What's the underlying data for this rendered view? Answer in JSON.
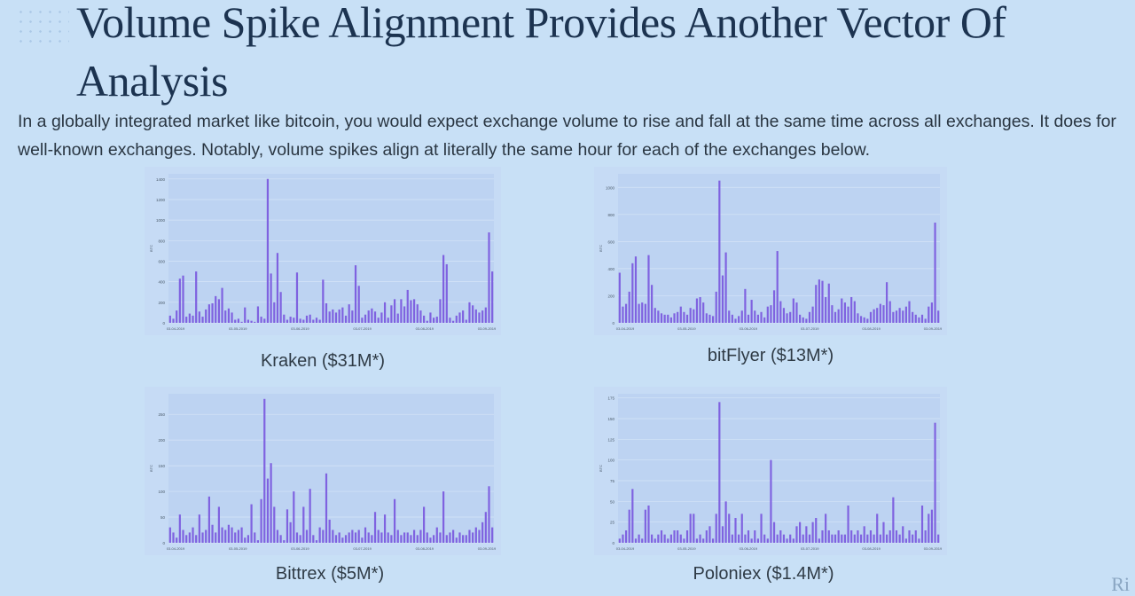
{
  "slide": {
    "title": "Volume Spike Alignment Provides Another Vector Of Analysis",
    "subtitle": "In a globally integrated market like bitcoin, you would expect exchange volume to rise and fall at the same time across all exchanges. It does for well-known exchanges. Notably, volume spikes align at literally the same hour for each of the exchanges below."
  },
  "colors": {
    "bar": "#7f62e0",
    "plot_bg": "#bdd3f2",
    "grid": "#d6e4f7"
  },
  "chart_data": [
    {
      "type": "bar",
      "label": "Kraken ($31M*)",
      "ylabel": "BTC",
      "ylim": [
        0,
        1450
      ],
      "yticks": [
        0,
        200,
        400,
        600,
        800,
        1000,
        1200,
        1400
      ],
      "xticks": [
        "03-04-2019",
        "03-05-2019",
        "03-06-2019",
        "03-07-2019",
        "03-08-2019",
        "03-09-2019"
      ],
      "values": [
        70,
        40,
        120,
        430,
        460,
        60,
        90,
        70,
        500,
        110,
        60,
        130,
        180,
        190,
        260,
        230,
        340,
        120,
        140,
        100,
        30,
        40,
        10,
        150,
        30,
        20,
        10,
        160,
        60,
        40,
        1400,
        480,
        200,
        680,
        300,
        80,
        30,
        60,
        50,
        490,
        40,
        30,
        70,
        80,
        30,
        50,
        30,
        420,
        190,
        110,
        130,
        100,
        130,
        150,
        70,
        180,
        120,
        560,
        360,
        50,
        80,
        120,
        140,
        110,
        50,
        100,
        200,
        50,
        170,
        230,
        90,
        230,
        160,
        320,
        220,
        230,
        180,
        120,
        70,
        20,
        100,
        50,
        60,
        230,
        660,
        570,
        50,
        20,
        70,
        100,
        120,
        30,
        200,
        170,
        130,
        100,
        120,
        150,
        880,
        500
      ]
    },
    {
      "type": "bar",
      "label": "bitFlyer ($13M*)",
      "ylabel": "BTC",
      "ylim": [
        0,
        1100
      ],
      "yticks": [
        0,
        200,
        400,
        600,
        800,
        1000
      ],
      "xticks": [
        "03-04-2019",
        "03-05-2019",
        "03-06-2019",
        "03-07-2019",
        "03-08-2019",
        "03-09-2019"
      ],
      "values": [
        370,
        120,
        140,
        230,
        440,
        490,
        140,
        150,
        140,
        500,
        280,
        110,
        90,
        70,
        60,
        60,
        40,
        70,
        80,
        120,
        80,
        60,
        110,
        100,
        180,
        190,
        150,
        70,
        60,
        50,
        230,
        1050,
        350,
        520,
        90,
        60,
        30,
        50,
        90,
        250,
        60,
        170,
        90,
        60,
        80,
        40,
        120,
        130,
        240,
        530,
        160,
        110,
        70,
        80,
        180,
        150,
        60,
        40,
        30,
        80,
        120,
        280,
        320,
        310,
        190,
        290,
        130,
        80,
        100,
        180,
        150,
        120,
        190,
        160,
        70,
        50,
        40,
        30,
        80,
        100,
        110,
        140,
        130,
        300,
        160,
        80,
        90,
        110,
        90,
        120,
        160,
        80,
        60,
        40,
        60,
        30,
        120,
        150,
        740,
        90
      ]
    },
    {
      "type": "bar",
      "label": "Bittrex ($5M*)",
      "ylabel": "BTC",
      "ylim": [
        0,
        290
      ],
      "yticks": [
        0,
        50,
        100,
        150,
        200,
        250
      ],
      "xticks": [
        "03-04-2019",
        "03-05-2019",
        "03-06-2019",
        "03-07-2019",
        "03-08-2019",
        "03-09-2019"
      ],
      "values": [
        30,
        20,
        10,
        55,
        25,
        15,
        20,
        30,
        15,
        55,
        20,
        25,
        90,
        35,
        20,
        70,
        30,
        25,
        35,
        30,
        20,
        25,
        30,
        10,
        15,
        75,
        20,
        5,
        85,
        280,
        125,
        155,
        70,
        25,
        15,
        5,
        65,
        40,
        100,
        20,
        15,
        70,
        25,
        105,
        15,
        5,
        30,
        25,
        135,
        45,
        25,
        15,
        20,
        10,
        15,
        20,
        25,
        20,
        25,
        10,
        30,
        20,
        15,
        60,
        25,
        20,
        55,
        20,
        15,
        85,
        25,
        15,
        20,
        20,
        15,
        25,
        15,
        25,
        70,
        20,
        10,
        15,
        30,
        20,
        100,
        15,
        20,
        25,
        10,
        20,
        15,
        15,
        25,
        20,
        30,
        25,
        40,
        60,
        110,
        30
      ]
    },
    {
      "type": "bar",
      "label": "Poloniex ($1.4M*)",
      "ylabel": "BTC",
      "ylim": [
        0,
        180
      ],
      "yticks": [
        0,
        25,
        50,
        75,
        100,
        125,
        150,
        175
      ],
      "xticks": [
        "03-04-2019",
        "03-05-2019",
        "03-06-2019",
        "03-07-2019",
        "03-08-2019",
        "03-09-2019"
      ],
      "values": [
        5,
        10,
        15,
        40,
        65,
        5,
        10,
        5,
        40,
        45,
        10,
        5,
        10,
        15,
        10,
        5,
        10,
        15,
        15,
        10,
        5,
        15,
        35,
        35,
        5,
        10,
        5,
        15,
        20,
        5,
        35,
        170,
        20,
        50,
        35,
        10,
        30,
        10,
        35,
        10,
        15,
        5,
        15,
        5,
        35,
        10,
        5,
        100,
        25,
        10,
        15,
        10,
        5,
        10,
        5,
        20,
        25,
        10,
        20,
        10,
        25,
        30,
        5,
        15,
        35,
        15,
        10,
        10,
        15,
        10,
        10,
        45,
        15,
        10,
        15,
        10,
        20,
        10,
        15,
        10,
        35,
        10,
        25,
        10,
        15,
        55,
        15,
        10,
        20,
        5,
        15,
        10,
        15,
        5,
        45,
        15,
        35,
        40,
        145,
        10
      ]
    }
  ]
}
